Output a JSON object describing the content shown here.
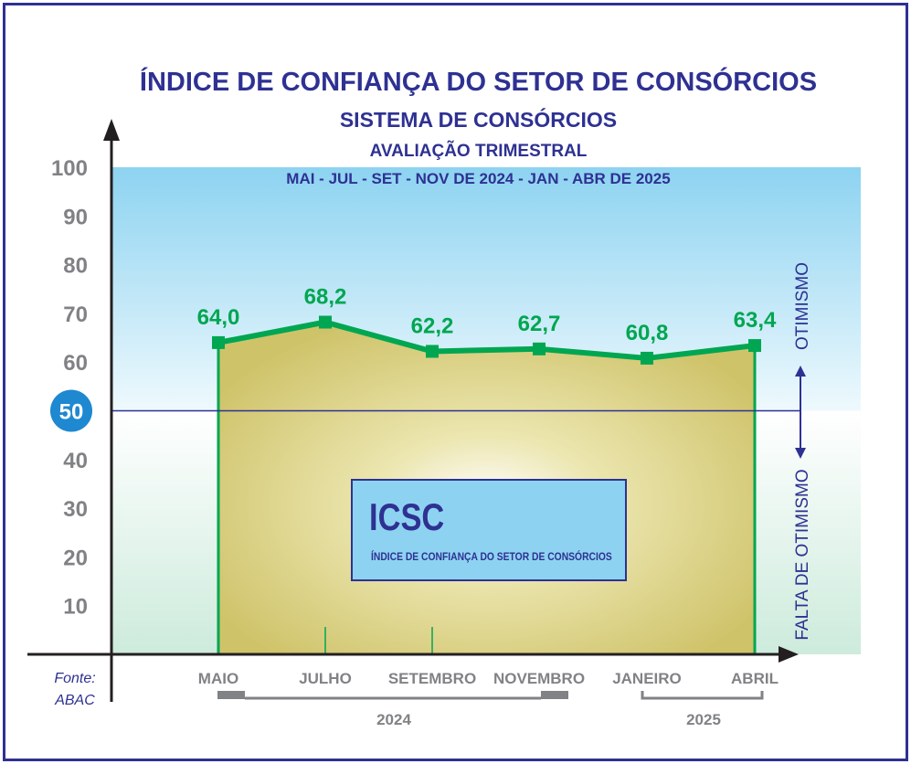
{
  "header": {
    "title": "ÍNDICE DE CONFIANÇA DO SETOR DE CONSÓRCIOS",
    "subtitle": "SISTEMA DE CONSÓRCIOS",
    "evaluation": "AVALIAÇÃO TRIMESTRAL",
    "period": "MAI - JUL - SET - NOV DE 2024 - JAN - ABR DE 2025"
  },
  "legend_box": {
    "acronym": "ICSC",
    "description": "ÍNDICE DE CONFIANÇA DO SETOR DE CONSÓRCIOS"
  },
  "side_labels": {
    "above": "OTIMISMO",
    "below": "FALTA DE OTIMISMO"
  },
  "source": {
    "label": "Fonte:",
    "value": "ABAC"
  },
  "years": [
    "2024",
    "2025"
  ],
  "colors": {
    "title": "#2e3192",
    "line": "#00a651",
    "area": "#cfc36a",
    "optimism_bg": "#8dd3f1",
    "pessimism_bg": "#cdebdc",
    "highlight_50": "#1e88d0"
  },
  "chart_data": {
    "type": "area",
    "categories": [
      "MAIO",
      "JULHO",
      "SETEMBRO",
      "NOVEMBRO",
      "JANEIRO",
      "ABRIL"
    ],
    "values": [
      64.0,
      68.2,
      62.2,
      62.7,
      60.8,
      63.4
    ],
    "value_labels": [
      "64,0",
      "68,2",
      "62,2",
      "62,7",
      "60,8",
      "63,4"
    ],
    "y_ticks": [
      10,
      20,
      30,
      40,
      50,
      60,
      70,
      80,
      90,
      100
    ],
    "ylim": [
      0,
      100
    ],
    "reference_line": 50,
    "highlighted_tick": 50
  }
}
